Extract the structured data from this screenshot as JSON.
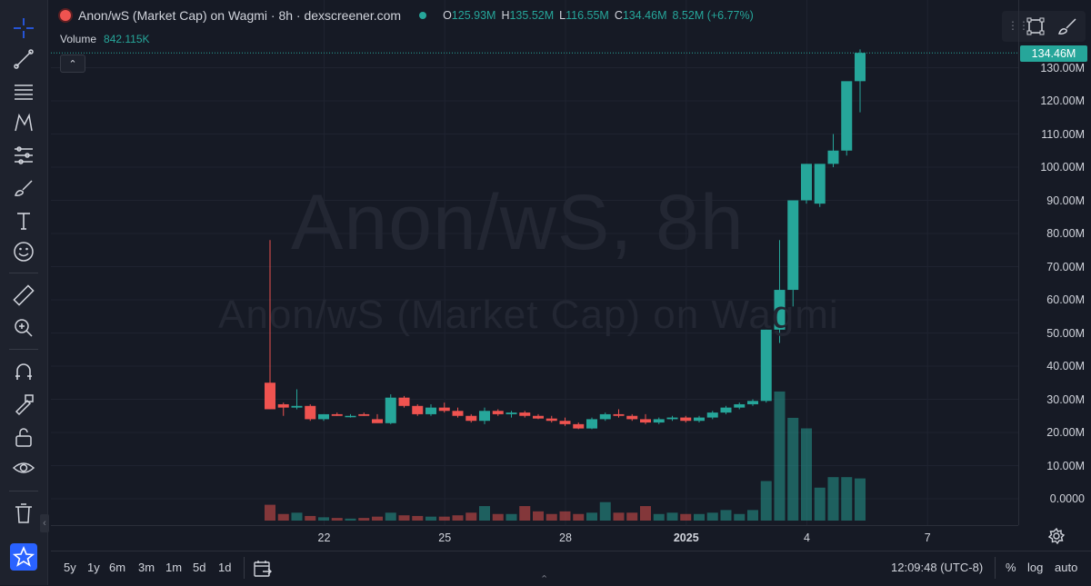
{
  "header": {
    "title": "Anon/wS (Market Cap) on Wagmi · 8h · dexscreener.com",
    "ohlc": [
      {
        "k": "O",
        "v": "125.93M"
      },
      {
        "k": "H",
        "v": "135.52M"
      },
      {
        "k": "L",
        "v": "116.55M"
      },
      {
        "k": "C",
        "v": "134.46M"
      },
      {
        "k": "",
        "v": "8.52M (+6.77%)"
      }
    ],
    "volume_label": "Volume",
    "volume_value": "842.115K"
  },
  "watermark": {
    "line1": "Anon/wS, 8h",
    "line2": "Anon/wS (Market Cap) on Wagmi"
  },
  "price_axis": {
    "labels": [
      "130.00M",
      "120.00M",
      "110.00M",
      "100.00M",
      "90.00M",
      "80.00M",
      "70.00M",
      "60.00M",
      "50.00M",
      "40.00M",
      "30.00M",
      "20.00M",
      "10.00M",
      "0.0000"
    ],
    "last_price": "134.46M"
  },
  "time_axis": {
    "labels": [
      {
        "text": "22",
        "idx": 2,
        "bold": false
      },
      {
        "text": "25",
        "idx": 11,
        "bold": false
      },
      {
        "text": "28",
        "idx": 20,
        "bold": false
      },
      {
        "text": "2025",
        "idx": 29,
        "bold": true
      },
      {
        "text": "4",
        "idx": 38,
        "bold": false
      },
      {
        "text": "7",
        "idx": 47,
        "bold": false
      }
    ]
  },
  "bottombar": {
    "ranges": [
      "5y",
      "1y",
      "6m",
      "3m",
      "1m",
      "5d",
      "1d"
    ],
    "clock": "12:09:48 (UTC-8)",
    "percent": "%",
    "log": "log",
    "auto": "auto"
  },
  "colors": {
    "up": "#26a69a",
    "down": "#ef5350",
    "bg": "#161a25"
  },
  "chart_data": {
    "type": "candlestick",
    "title": "Anon/wS (Market Cap) on Wagmi · 8h",
    "ylabel": "Market Cap",
    "y_range": [
      0,
      140000000
    ],
    "grid": true,
    "candles": [
      {
        "o": 35,
        "h": 78,
        "l": 27,
        "c": 27,
        "v": 1.2
      },
      {
        "o": 28.5,
        "h": 29,
        "l": 25,
        "c": 27.5,
        "v": 0.5
      },
      {
        "o": 27.5,
        "h": 33,
        "l": 27,
        "c": 28,
        "v": 0.6
      },
      {
        "o": 28,
        "h": 28.5,
        "l": 23.5,
        "c": 24,
        "v": 0.35
      },
      {
        "o": 24,
        "h": 25.5,
        "l": 23.5,
        "c": 25.5,
        "v": 0.25
      },
      {
        "o": 25.5,
        "h": 26,
        "l": 25,
        "c": 25,
        "v": 0.2
      },
      {
        "o": 25,
        "h": 25.5,
        "l": 24.5,
        "c": 25,
        "v": 0.15
      },
      {
        "o": 25.5,
        "h": 26,
        "l": 25,
        "c": 25,
        "v": 0.2
      },
      {
        "o": 24,
        "h": 25.5,
        "l": 23,
        "c": 22.8,
        "v": 0.3
      },
      {
        "o": 22.8,
        "h": 31.5,
        "l": 22.5,
        "c": 30.5,
        "v": 0.6
      },
      {
        "o": 30.5,
        "h": 31,
        "l": 27.5,
        "c": 28,
        "v": 0.4
      },
      {
        "o": 28,
        "h": 28.5,
        "l": 25,
        "c": 25.5,
        "v": 0.35
      },
      {
        "o": 25.5,
        "h": 28.5,
        "l": 25,
        "c": 27.5,
        "v": 0.3
      },
      {
        "o": 27.5,
        "h": 29,
        "l": 26,
        "c": 26.5,
        "v": 0.3
      },
      {
        "o": 26.5,
        "h": 27.5,
        "l": 24.5,
        "c": 25,
        "v": 0.4
      },
      {
        "o": 25,
        "h": 25.5,
        "l": 23,
        "c": 23.5,
        "v": 0.6
      },
      {
        "o": 23.5,
        "h": 27.5,
        "l": 22.5,
        "c": 26.5,
        "v": 1.1
      },
      {
        "o": 26.5,
        "h": 27,
        "l": 25,
        "c": 25.5,
        "v": 0.5
      },
      {
        "o": 25.5,
        "h": 26.5,
        "l": 24.5,
        "c": 26,
        "v": 0.5
      },
      {
        "o": 26,
        "h": 26.5,
        "l": 24.5,
        "c": 25,
        "v": 1.1
      },
      {
        "o": 25,
        "h": 25.5,
        "l": 24,
        "c": 24.2,
        "v": 0.7
      },
      {
        "o": 24.2,
        "h": 25,
        "l": 23,
        "c": 23.5,
        "v": 0.5
      },
      {
        "o": 23.5,
        "h": 24.5,
        "l": 22,
        "c": 22.5,
        "v": 0.7
      },
      {
        "o": 22.5,
        "h": 23,
        "l": 21,
        "c": 21.2,
        "v": 0.5
      },
      {
        "o": 21.2,
        "h": 24.5,
        "l": 21,
        "c": 24,
        "v": 0.6
      },
      {
        "o": 24,
        "h": 26,
        "l": 23.5,
        "c": 25.5,
        "v": 1.4
      },
      {
        "o": 25.5,
        "h": 27,
        "l": 24.5,
        "c": 25,
        "v": 0.6
      },
      {
        "o": 25,
        "h": 25.5,
        "l": 23.5,
        "c": 24,
        "v": 0.6
      },
      {
        "o": 24,
        "h": 25.5,
        "l": 22.5,
        "c": 23,
        "v": 1.1
      },
      {
        "o": 23,
        "h": 24.5,
        "l": 22.5,
        "c": 24,
        "v": 0.5
      },
      {
        "o": 24,
        "h": 25,
        "l": 23.5,
        "c": 24.5,
        "v": 0.6
      },
      {
        "o": 24.5,
        "h": 25,
        "l": 23,
        "c": 23.5,
        "v": 0.5
      },
      {
        "o": 23.5,
        "h": 25,
        "l": 23,
        "c": 24.5,
        "v": 0.5
      },
      {
        "o": 24.5,
        "h": 26.5,
        "l": 24,
        "c": 26,
        "v": 0.6
      },
      {
        "o": 26,
        "h": 28,
        "l": 25.5,
        "c": 27.5,
        "v": 0.8
      },
      {
        "o": 27.5,
        "h": 29,
        "l": 27,
        "c": 28.5,
        "v": 0.5
      },
      {
        "o": 28.5,
        "h": 30,
        "l": 28,
        "c": 29.5,
        "v": 0.8
      },
      {
        "o": 29.5,
        "h": 51,
        "l": 29,
        "c": 51,
        "v": 3
      },
      {
        "o": 51,
        "h": 78,
        "l": 47,
        "c": 63,
        "v": 9.8
      },
      {
        "o": 63,
        "h": 87,
        "l": 58,
        "c": 90,
        "v": 7.8
      },
      {
        "o": 90,
        "h": 101,
        "l": 89,
        "c": 101,
        "v": 7
      },
      {
        "o": 89,
        "h": 96,
        "l": 88,
        "c": 101,
        "v": 2.5
      },
      {
        "o": 101,
        "h": 110,
        "l": 100,
        "c": 105,
        "v": 3.3
      },
      {
        "o": 105,
        "h": 110,
        "l": 103.5,
        "c": 125.93,
        "v": 3.3
      },
      {
        "o": 125.93,
        "h": 135.52,
        "l": 116.55,
        "c": 134.46,
        "v": 3.2
      }
    ]
  }
}
